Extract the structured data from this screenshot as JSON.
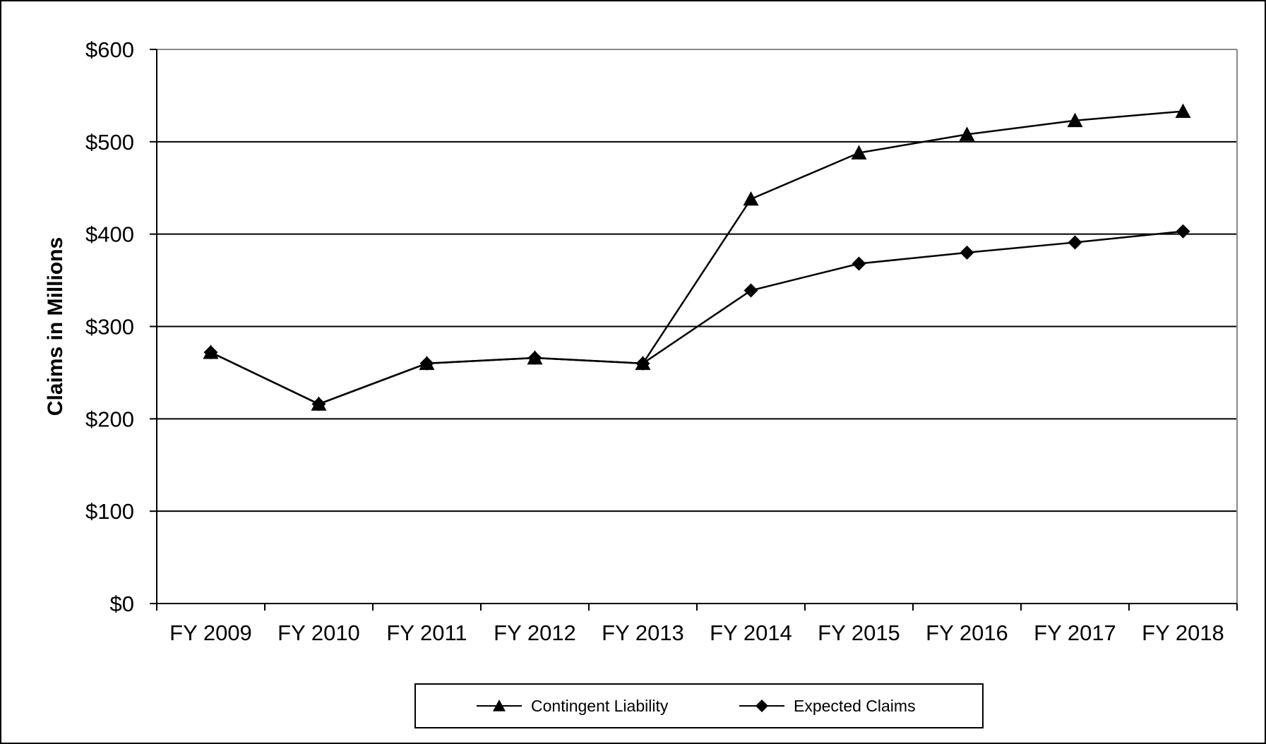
{
  "chart_data": {
    "type": "line",
    "title": "",
    "xlabel": "",
    "ylabel": "Claims in Millions",
    "categories": [
      "FY 2009",
      "FY 2010",
      "FY 2011",
      "FY 2012",
      "FY 2013",
      "FY 2014",
      "FY 2015",
      "FY 2016",
      "FY 2017",
      "FY 2018"
    ],
    "ylim": [
      0,
      600
    ],
    "yticks": [
      0,
      100,
      200,
      300,
      400,
      500,
      600
    ],
    "ytick_labels": [
      "$0",
      "$100",
      "$200",
      "$300",
      "$400",
      "$500",
      "$600"
    ],
    "grid": true,
    "legend_position": "bottom",
    "series": [
      {
        "name": "Contingent Liability",
        "marker": "triangle",
        "color": "#000000",
        "values": [
          272,
          216,
          260,
          266,
          260,
          438,
          488,
          508,
          523,
          533
        ]
      },
      {
        "name": "Expected Claims",
        "marker": "diamond",
        "color": "#000000",
        "values": [
          272,
          216,
          260,
          266,
          260,
          339,
          368,
          380,
          391,
          403
        ]
      }
    ]
  }
}
